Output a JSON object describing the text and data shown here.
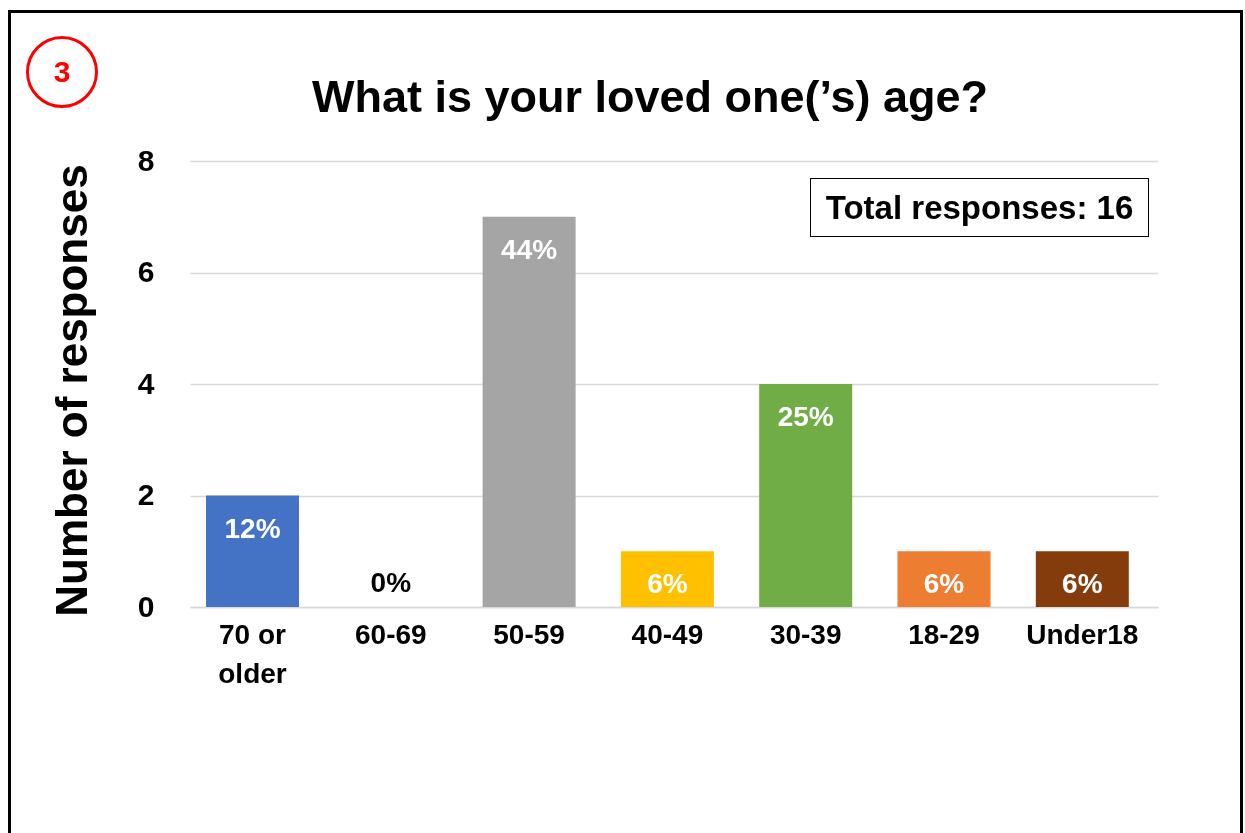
{
  "chart_data": {
    "type": "bar",
    "title": "What is your loved one(’s) age?",
    "ylabel": "Number of responses",
    "categories": [
      "70 or older",
      "60-69",
      "50-59",
      "40-49",
      "30-39",
      "18-29",
      "Under18"
    ],
    "values": [
      2,
      0,
      7,
      1,
      4,
      1,
      1
    ],
    "colors": [
      "#4472c4",
      "#5b9bd5",
      "#a5a5a5",
      "#ffc000",
      "#70ad47",
      "#ed7d31",
      "#843c0c"
    ],
    "ylim": [
      0,
      8
    ],
    "yticks": [
      0,
      2,
      4,
      6,
      8
    ],
    "grid": "y",
    "annotations": [
      "3",
      "Total responses: 16",
      {
        "text": "12%",
        "x": "70 or older",
        "y": 2
      },
      {
        "text": "0%",
        "x": "60-69",
        "y": 0
      },
      {
        "text": "44%",
        "x": "50-59",
        "y": 7
      },
      {
        "text": "6%",
        "x": "40-49",
        "y": 1
      },
      {
        "text": "25%",
        "x": "30-39",
        "y": 4
      },
      {
        "text": "6%",
        "x": "18-29",
        "y": 1
      },
      {
        "text": "6%",
        "x": "Under18",
        "y": 1
      }
    ]
  }
}
